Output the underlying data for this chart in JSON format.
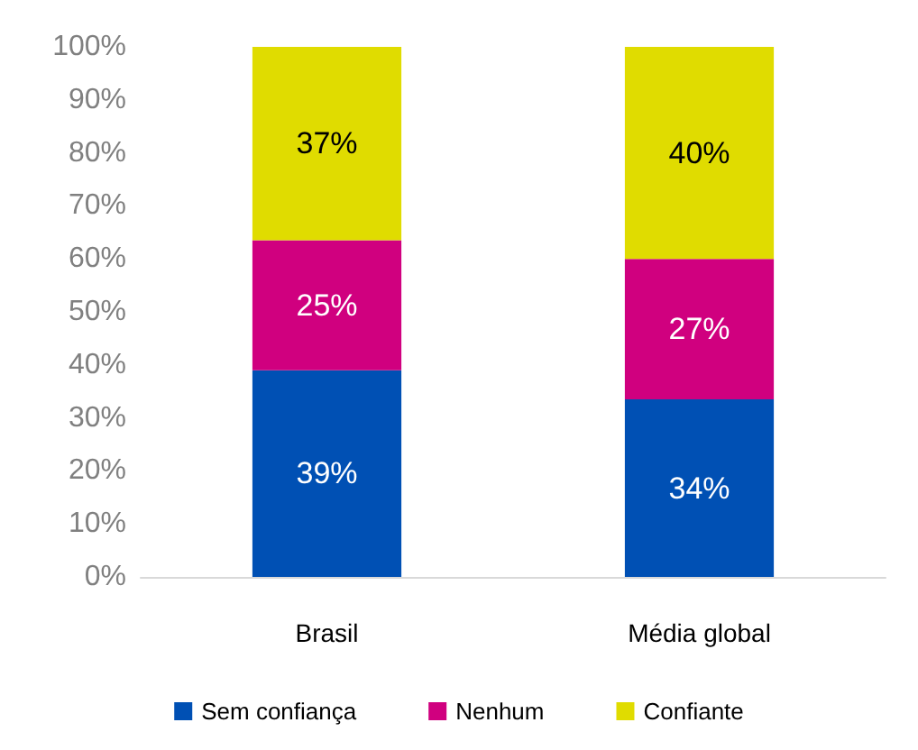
{
  "chart_data": {
    "type": "bar",
    "stacked": true,
    "categories": [
      "Brasil",
      "Média global"
    ],
    "series": [
      {
        "name": "Sem confiança",
        "color": "#0050b4",
        "values": [
          39,
          33.5
        ],
        "value_labels": [
          "39%",
          "34%"
        ]
      },
      {
        "name": "Nenhum",
        "color": "#d0007f",
        "values": [
          24.5,
          26.5
        ],
        "value_labels": [
          "25%",
          "27%"
        ]
      },
      {
        "name": "Confiante",
        "color": "#e0dc00",
        "values": [
          36.5,
          40
        ],
        "value_labels": [
          "37%",
          "40%"
        ]
      }
    ],
    "ylim": [
      0,
      100
    ],
    "yticks": [
      {
        "value": 0,
        "label": "0%"
      },
      {
        "value": 10,
        "label": "10%"
      },
      {
        "value": 20,
        "label": "20%"
      },
      {
        "value": 30,
        "label": "30%"
      },
      {
        "value": 40,
        "label": "40%"
      },
      {
        "value": 50,
        "label": "50%"
      },
      {
        "value": 60,
        "label": "60%"
      },
      {
        "value": 70,
        "label": "70%"
      },
      {
        "value": 80,
        "label": "80%"
      },
      {
        "value": 90,
        "label": "90%"
      },
      {
        "value": 100,
        "label": "100%"
      }
    ],
    "grid": false,
    "legend": "bottom"
  }
}
